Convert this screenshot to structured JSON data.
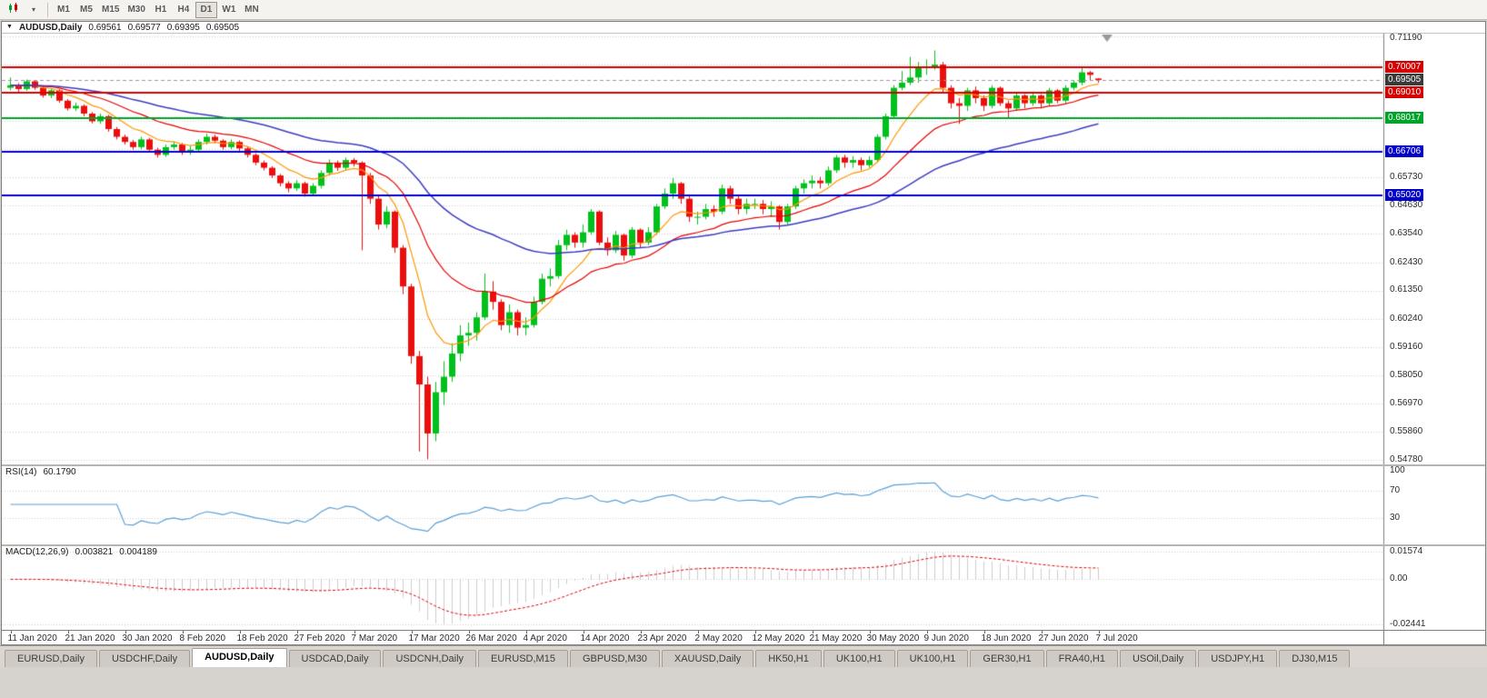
{
  "icons": {
    "collapse": "▼",
    "dropdown": "▾"
  },
  "toolbar": {
    "timeframes": [
      "M1",
      "M5",
      "M15",
      "M30",
      "H1",
      "H4",
      "D1",
      "W1",
      "MN"
    ],
    "active_timeframe": "D1"
  },
  "chart": {
    "symbol_title": "AUDUSD,Daily",
    "ohlc_display": {
      "open": "0.69561",
      "high": "0.69577",
      "low": "0.69395",
      "close": "0.69505"
    }
  },
  "chart_data": {
    "type": "candlestick",
    "symbol": "AUDUSD",
    "timeframe": "Daily",
    "bars_per_label": 7,
    "x_labels": [
      "11 Jan 2020",
      "21 Jan 2020",
      "30 Jan 2020",
      "8 Feb 2020",
      "18 Feb 2020",
      "27 Feb 2020",
      "7 Mar 2020",
      "17 Mar 2020",
      "26 Mar 2020",
      "4 Apr 2020",
      "14 Apr 2020",
      "23 Apr 2020",
      "2 May 2020",
      "12 May 2020",
      "21 May 2020",
      "30 May 2020",
      "9 Jun 2020",
      "18 Jun 2020",
      "27 Jun 2020",
      "7 Jul 2020"
    ],
    "y_axis": {
      "min": 0.546,
      "max": 0.713,
      "tick_min": 0.5478,
      "tick_max": 0.7119,
      "tick_count": 16,
      "labels": [
        {
          "p": 0.7119,
          "t": "0.71190"
        },
        {
          "p": 0.6573,
          "t": "0.65730"
        },
        {
          "p": 0.6463,
          "t": "0.64630"
        },
        {
          "p": 0.6354,
          "t": "0.63540"
        },
        {
          "p": 0.6243,
          "t": "0.62430"
        },
        {
          "p": 0.6135,
          "t": "0.61350"
        },
        {
          "p": 0.6024,
          "t": "0.60240"
        },
        {
          "p": 0.5916,
          "t": "0.59160"
        },
        {
          "p": 0.5805,
          "t": "0.58050"
        },
        {
          "p": 0.5697,
          "t": "0.56970"
        },
        {
          "p": 0.5586,
          "t": "0.55860"
        },
        {
          "p": 0.5478,
          "t": "0.54780"
        }
      ]
    },
    "price_tags": [
      {
        "p": 0.70007,
        "t": "0.70007",
        "bg": "#D40000",
        "name": "resistance-price-tag"
      },
      {
        "p": 0.69505,
        "t": "0.69505",
        "bg": "#3A3A3A",
        "name": "bid-price-tag"
      },
      {
        "p": 0.6901,
        "t": "0.69010",
        "bg": "#D40000",
        "name": "resistance-price-tag"
      },
      {
        "p": 0.68017,
        "t": "0.68017",
        "bg": "#00A32A",
        "name": "support-price-tag"
      },
      {
        "p": 0.66706,
        "t": "0.66706",
        "bg": "#0000CC",
        "name": "support-price-tag"
      },
      {
        "p": 0.6502,
        "t": "0.65020",
        "bg": "#0000CC",
        "name": "support-price-tag"
      }
    ],
    "h_lines": [
      {
        "p": 0.70007,
        "color": "#D40000",
        "width": 2,
        "style": "solid",
        "name": "resistance-line-1"
      },
      {
        "p": 0.6901,
        "color": "#D40000",
        "width": 2,
        "style": "solid",
        "name": "resistance-line-2"
      },
      {
        "p": 0.68017,
        "color": "#00A32A",
        "width": 2,
        "style": "solid",
        "name": "support-line-1"
      },
      {
        "p": 0.66706,
        "color": "#0000CC",
        "width": 2,
        "style": "solid",
        "name": "support-line-2"
      },
      {
        "p": 0.6502,
        "color": "#0000CC",
        "width": 2,
        "style": "solid",
        "name": "support-line-3"
      },
      {
        "p": 0.69505,
        "color": "#999999",
        "width": 1,
        "style": "dash",
        "name": "bid-price-line"
      }
    ],
    "moving_averages": [
      {
        "period": 8,
        "color": "#FF9500",
        "name": "ma-fast-orange"
      },
      {
        "period": 20,
        "color": "#E60000",
        "name": "ma-medium-red"
      },
      {
        "period": 45,
        "color": "#3C3CC0",
        "name": "ma-slow-blue"
      }
    ],
    "candle_colors": {
      "up": "#00C11B",
      "down": "#EC0D0D"
    },
    "ohlc": [
      [
        0.692,
        0.696,
        0.691,
        0.693
      ],
      [
        0.693,
        0.6938,
        0.6905,
        0.6915
      ],
      [
        0.6915,
        0.6952,
        0.6908,
        0.6945
      ],
      [
        0.6945,
        0.695,
        0.6912,
        0.692
      ],
      [
        0.692,
        0.6926,
        0.6882,
        0.689
      ],
      [
        0.689,
        0.6918,
        0.688,
        0.691
      ],
      [
        0.691,
        0.6915,
        0.6862,
        0.687
      ],
      [
        0.687,
        0.6876,
        0.6832,
        0.684
      ],
      [
        0.684,
        0.6862,
        0.683,
        0.685
      ],
      [
        0.685,
        0.6856,
        0.681,
        0.682
      ],
      [
        0.682,
        0.6826,
        0.6782,
        0.679
      ],
      [
        0.679,
        0.682,
        0.678,
        0.681
      ],
      [
        0.681,
        0.6815,
        0.675,
        0.676
      ],
      [
        0.676,
        0.6768,
        0.672,
        0.673
      ],
      [
        0.673,
        0.6738,
        0.67,
        0.671
      ],
      [
        0.671,
        0.6718,
        0.668,
        0.669
      ],
      [
        0.669,
        0.673,
        0.6682,
        0.672
      ],
      [
        0.672,
        0.6726,
        0.667,
        0.668
      ],
      [
        0.668,
        0.6688,
        0.665,
        0.666
      ],
      [
        0.666,
        0.67,
        0.6652,
        0.669
      ],
      [
        0.669,
        0.6712,
        0.668,
        0.67
      ],
      [
        0.67,
        0.6706,
        0.666,
        0.667
      ],
      [
        0.667,
        0.6695,
        0.666,
        0.668
      ],
      [
        0.668,
        0.672,
        0.667,
        0.671
      ],
      [
        0.671,
        0.6742,
        0.67,
        0.673
      ],
      [
        0.673,
        0.6738,
        0.6705,
        0.6715
      ],
      [
        0.6715,
        0.672,
        0.668,
        0.669
      ],
      [
        0.669,
        0.672,
        0.6682,
        0.671
      ],
      [
        0.671,
        0.6716,
        0.6675,
        0.6685
      ],
      [
        0.6685,
        0.669,
        0.665,
        0.666
      ],
      [
        0.666,
        0.6666,
        0.662,
        0.663
      ],
      [
        0.663,
        0.6638,
        0.66,
        0.661
      ],
      [
        0.661,
        0.6616,
        0.657,
        0.658
      ],
      [
        0.658,
        0.6586,
        0.6538,
        0.655
      ],
      [
        0.655,
        0.6558,
        0.6515,
        0.653
      ],
      [
        0.653,
        0.6562,
        0.652,
        0.655
      ],
      [
        0.655,
        0.6556,
        0.6498,
        0.651
      ],
      [
        0.651,
        0.655,
        0.65,
        0.654
      ],
      [
        0.654,
        0.66,
        0.653,
        0.659
      ],
      [
        0.659,
        0.6642,
        0.658,
        0.663
      ],
      [
        0.663,
        0.6638,
        0.6598,
        0.661
      ],
      [
        0.661,
        0.665,
        0.66,
        0.664
      ],
      [
        0.664,
        0.6648,
        0.6615,
        0.663
      ],
      [
        0.663,
        0.6635,
        0.629,
        0.658
      ],
      [
        0.658,
        0.659,
        0.647,
        0.649
      ],
      [
        0.649,
        0.65,
        0.637,
        0.639
      ],
      [
        0.639,
        0.646,
        0.6375,
        0.644
      ],
      [
        0.644,
        0.6445,
        0.628,
        0.63
      ],
      [
        0.63,
        0.631,
        0.612,
        0.615
      ],
      [
        0.615,
        0.616,
        0.585,
        0.588
      ],
      [
        0.588,
        0.59,
        0.551,
        0.577
      ],
      [
        0.577,
        0.58,
        0.548,
        0.558
      ],
      [
        0.558,
        0.578,
        0.555,
        0.574
      ],
      [
        0.574,
        0.586,
        0.569,
        0.58
      ],
      [
        0.58,
        0.593,
        0.578,
        0.589
      ],
      [
        0.589,
        0.6,
        0.586,
        0.596
      ],
      [
        0.596,
        0.601,
        0.592,
        0.597
      ],
      [
        0.597,
        0.605,
        0.594,
        0.603
      ],
      [
        0.603,
        0.62,
        0.602,
        0.613
      ],
      [
        0.613,
        0.617,
        0.606,
        0.609
      ],
      [
        0.609,
        0.61,
        0.598,
        0.6
      ],
      [
        0.6,
        0.608,
        0.597,
        0.605
      ],
      [
        0.605,
        0.606,
        0.596,
        0.599
      ],
      [
        0.599,
        0.603,
        0.596,
        0.6
      ],
      [
        0.6,
        0.611,
        0.599,
        0.609
      ],
      [
        0.609,
        0.62,
        0.608,
        0.618
      ],
      [
        0.618,
        0.622,
        0.615,
        0.619
      ],
      [
        0.619,
        0.633,
        0.618,
        0.631
      ],
      [
        0.631,
        0.637,
        0.629,
        0.635
      ],
      [
        0.635,
        0.636,
        0.63,
        0.632
      ],
      [
        0.632,
        0.639,
        0.63,
        0.636
      ],
      [
        0.636,
        0.645,
        0.635,
        0.644
      ],
      [
        0.644,
        0.6445,
        0.631,
        0.632
      ],
      [
        0.632,
        0.634,
        0.627,
        0.629
      ],
      [
        0.629,
        0.6365,
        0.628,
        0.635
      ],
      [
        0.635,
        0.6355,
        0.625,
        0.627
      ],
      [
        0.627,
        0.638,
        0.626,
        0.637
      ],
      [
        0.637,
        0.6375,
        0.63,
        0.632
      ],
      [
        0.632,
        0.638,
        0.631,
        0.636
      ],
      [
        0.636,
        0.647,
        0.635,
        0.646
      ],
      [
        0.646,
        0.653,
        0.645,
        0.651
      ],
      [
        0.651,
        0.657,
        0.649,
        0.655
      ],
      [
        0.655,
        0.6555,
        0.647,
        0.649
      ],
      [
        0.649,
        0.65,
        0.64,
        0.642
      ],
      [
        0.642,
        0.644,
        0.639,
        0.642
      ],
      [
        0.642,
        0.647,
        0.641,
        0.645
      ],
      [
        0.645,
        0.6465,
        0.642,
        0.644
      ],
      [
        0.644,
        0.6545,
        0.643,
        0.653
      ],
      [
        0.653,
        0.654,
        0.647,
        0.649
      ],
      [
        0.649,
        0.65,
        0.643,
        0.645
      ],
      [
        0.645,
        0.649,
        0.643,
        0.647
      ],
      [
        0.647,
        0.649,
        0.645,
        0.647
      ],
      [
        0.647,
        0.6485,
        0.643,
        0.645
      ],
      [
        0.645,
        0.648,
        0.642,
        0.646
      ],
      [
        0.646,
        0.6465,
        0.637,
        0.64
      ],
      [
        0.64,
        0.647,
        0.639,
        0.646
      ],
      [
        0.646,
        0.654,
        0.645,
        0.653
      ],
      [
        0.653,
        0.6565,
        0.651,
        0.655
      ],
      [
        0.655,
        0.658,
        0.653,
        0.656
      ],
      [
        0.656,
        0.6575,
        0.653,
        0.655
      ],
      [
        0.655,
        0.6615,
        0.654,
        0.66
      ],
      [
        0.66,
        0.666,
        0.659,
        0.665
      ],
      [
        0.665,
        0.666,
        0.661,
        0.663
      ],
      [
        0.663,
        0.6655,
        0.661,
        0.664
      ],
      [
        0.664,
        0.665,
        0.66,
        0.662
      ],
      [
        0.662,
        0.6655,
        0.661,
        0.664
      ],
      [
        0.664,
        0.674,
        0.663,
        0.673
      ],
      [
        0.673,
        0.682,
        0.672,
        0.681
      ],
      [
        0.681,
        0.693,
        0.68,
        0.692
      ],
      [
        0.692,
        0.6985,
        0.691,
        0.694
      ],
      [
        0.694,
        0.704,
        0.693,
        0.696
      ],
      [
        0.696,
        0.702,
        0.694,
        0.7
      ],
      [
        0.7,
        0.703,
        0.697,
        0.7
      ],
      [
        0.7,
        0.7065,
        0.699,
        0.701
      ],
      [
        0.701,
        0.702,
        0.69,
        0.692
      ],
      [
        0.692,
        0.693,
        0.684,
        0.686
      ],
      [
        0.686,
        0.688,
        0.678,
        0.685
      ],
      [
        0.685,
        0.692,
        0.683,
        0.691
      ],
      [
        0.691,
        0.6925,
        0.686,
        0.688
      ],
      [
        0.688,
        0.689,
        0.683,
        0.685
      ],
      [
        0.685,
        0.693,
        0.684,
        0.692
      ],
      [
        0.692,
        0.6925,
        0.685,
        0.686
      ],
      [
        0.686,
        0.687,
        0.68,
        0.684
      ],
      [
        0.684,
        0.69,
        0.683,
        0.689
      ],
      [
        0.689,
        0.6895,
        0.684,
        0.686
      ],
      [
        0.686,
        0.6905,
        0.685,
        0.689
      ],
      [
        0.689,
        0.6895,
        0.684,
        0.686
      ],
      [
        0.686,
        0.692,
        0.685,
        0.691
      ],
      [
        0.691,
        0.6915,
        0.686,
        0.687
      ],
      [
        0.687,
        0.693,
        0.686,
        0.692
      ],
      [
        0.692,
        0.695,
        0.691,
        0.694
      ],
      [
        0.694,
        0.7,
        0.693,
        0.698
      ],
      [
        0.698,
        0.6985,
        0.695,
        0.697
      ],
      [
        0.69561,
        0.69577,
        0.69395,
        0.69505
      ]
    ],
    "indicators": {
      "rsi": {
        "label": "RSI(14)",
        "value": "60.1790",
        "period": 14,
        "line_color": "#5B9FD4",
        "levels": [
          {
            "v": 100,
            "t": "100"
          },
          {
            "v": 70,
            "t": "70"
          },
          {
            "v": 30,
            "t": "30"
          }
        ]
      },
      "macd": {
        "label": "MACD(12,26,9)",
        "value_main": "0.003821",
        "value_signal": "0.004189",
        "fast": 12,
        "slow": 26,
        "signal": 9,
        "hist_color": "#9A9A9A",
        "signal_color": "#DD0000",
        "axis_labels": {
          "max": "0.01574",
          "zero": "0.00",
          "min": "-0.02441"
        }
      }
    }
  },
  "tabs": {
    "active_index": 2,
    "items": [
      "EURUSD,Daily",
      "USDCHF,Daily",
      "AUDUSD,Daily",
      "USDCAD,Daily",
      "USDCNH,Daily",
      "EURUSD,M15",
      "GBPUSD,M30",
      "XAUUSD,Daily",
      "HK50,H1",
      "UK100,H1",
      "UK100,H1",
      "GER30,H1",
      "FRA40,H1",
      "USOil,Daily",
      "USDJPY,H1",
      "DJ30,M15"
    ]
  }
}
